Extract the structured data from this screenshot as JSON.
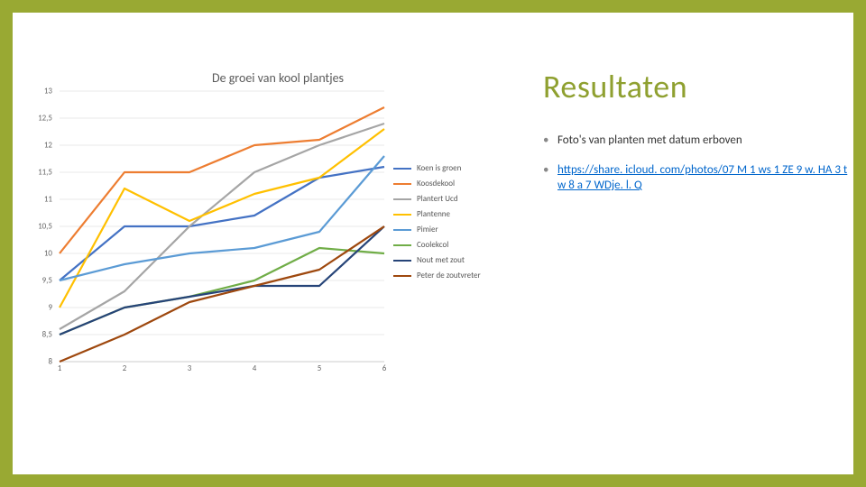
{
  "heading": "Resultaten",
  "bullets": {
    "b1": "Foto's van planten met datum erboven",
    "b2_link": "https://share. icloud. com/photos/07 M 1 ws 1 ZE 9 w. HA 3 tw 8 a 7 WDje. l. Q"
  },
  "chart": {
    "title": "De groei van kool plantjes",
    "type": "line",
    "x_categories": [
      "1",
      "2",
      "3",
      "4",
      "5",
      "6"
    ],
    "y_ticks": [
      "8",
      "8,5",
      "9",
      "9,5",
      "10",
      "10,5",
      "11",
      "11,5",
      "12",
      "12,5",
      "13"
    ],
    "y_min": 8,
    "y_max": 13,
    "grid_color": "#e8e8e8",
    "background_color": "#ffffff",
    "line_width": 2.2,
    "title_fontsize": 14,
    "label_fontsize": 9,
    "series": [
      {
        "name": "Koen is groen",
        "color": "#4472c4",
        "values": [
          9.5,
          10.5,
          10.5,
          10.7,
          11.4,
          11.6
        ]
      },
      {
        "name": "Koosdekool",
        "color": "#ed7d31",
        "values": [
          10.0,
          11.5,
          11.5,
          12.0,
          12.1,
          12.7
        ]
      },
      {
        "name": "Plantert Ucd",
        "color": "#a5a5a5",
        "values": [
          8.6,
          9.3,
          10.5,
          11.5,
          12.0,
          12.4
        ]
      },
      {
        "name": "Plantenne",
        "color": "#ffc000",
        "values": [
          9.0,
          11.2,
          10.6,
          11.1,
          11.4,
          12.3
        ]
      },
      {
        "name": "Pimier",
        "color": "#5b9bd5",
        "values": [
          9.5,
          9.8,
          10.0,
          10.1,
          10.4,
          11.8
        ]
      },
      {
        "name": "Coolekcol",
        "color": "#70ad47",
        "values": [
          8.5,
          9.0,
          9.2,
          9.5,
          10.1,
          10.0
        ]
      },
      {
        "name": "Nout met zout",
        "color": "#264478",
        "values": [
          8.5,
          9.0,
          9.2,
          9.4,
          9.4,
          10.5
        ]
      },
      {
        "name": "Peter de zoutvreter",
        "color": "#9e480e",
        "values": [
          8.0,
          8.5,
          9.1,
          9.4,
          9.7,
          10.5
        ]
      }
    ]
  }
}
